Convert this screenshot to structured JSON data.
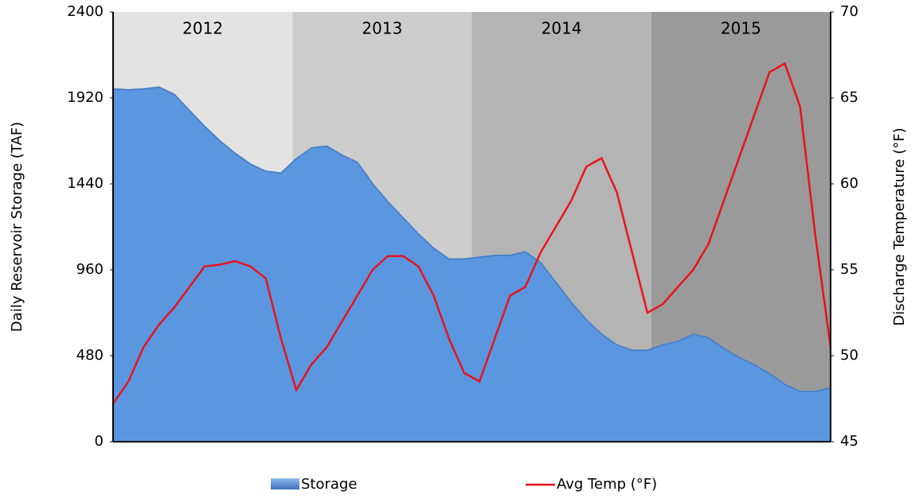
{
  "chart_data": {
    "type": "area-line",
    "y_label": "Daily Reservoir Storage (TAF)",
    "y2_label": "Discharge Temperature (°F)",
    "bands": [
      "2012",
      "2013",
      "2014",
      "2015"
    ],
    "band_colors": [
      "#e3e3e3",
      "#cdcdcd",
      "#b4b4b4",
      "#9a9a9a"
    ],
    "categories": [
      null,
      null,
      null,
      null,
      null,
      null,
      null,
      null,
      null,
      null,
      null,
      null,
      null,
      null,
      null,
      null,
      null,
      null,
      null,
      null,
      null,
      null,
      null,
      null,
      null,
      null,
      null,
      null,
      null,
      null,
      null,
      null,
      null,
      null,
      null,
      null,
      null,
      null,
      null,
      null,
      null,
      null,
      null,
      null,
      null,
      null,
      null,
      null
    ],
    "series": [
      {
        "name": "Storage",
        "color": "#5b97e0",
        "axis": "y",
        "values": [
          1970,
          1965,
          1970,
          1980,
          1940,
          1850,
          1760,
          1680,
          1610,
          1550,
          1510,
          1500,
          1580,
          1640,
          1650,
          1600,
          1560,
          1440,
          1340,
          1250,
          1160,
          1080,
          1020,
          1020,
          1030,
          1040,
          1040,
          1060,
          1000,
          890,
          780,
          680,
          600,
          540,
          510,
          510,
          540,
          560,
          600,
          580,
          520,
          470,
          430,
          380,
          320,
          280,
          280,
          300
        ]
      },
      {
        "name": "Avg Temp (°F)",
        "color": "#e8131b",
        "axis": "y2",
        "values": [
          47.2,
          48.5,
          50.5,
          51.8,
          52.8,
          54,
          55.2,
          55.3,
          55.5,
          55.2,
          54.5,
          51,
          48,
          49.5,
          50.5,
          52,
          53.5,
          55,
          55.8,
          55.8,
          55.2,
          53.5,
          51,
          49,
          48.5,
          51,
          53.5,
          54,
          56,
          57.5,
          59,
          61,
          61.5,
          59.5,
          56,
          52.5,
          53,
          54,
          55,
          56.5,
          59,
          61.5,
          64,
          66.5,
          67,
          64.5,
          57,
          50.5
        ]
      }
    ],
    "ylim": [
      0,
      2400
    ],
    "yticks": [
      0,
      480,
      960,
      1440,
      1920,
      2400
    ],
    "y2lim": [
      45,
      70
    ],
    "y2ticks": [
      45,
      50,
      55,
      60,
      65,
      70
    ]
  }
}
